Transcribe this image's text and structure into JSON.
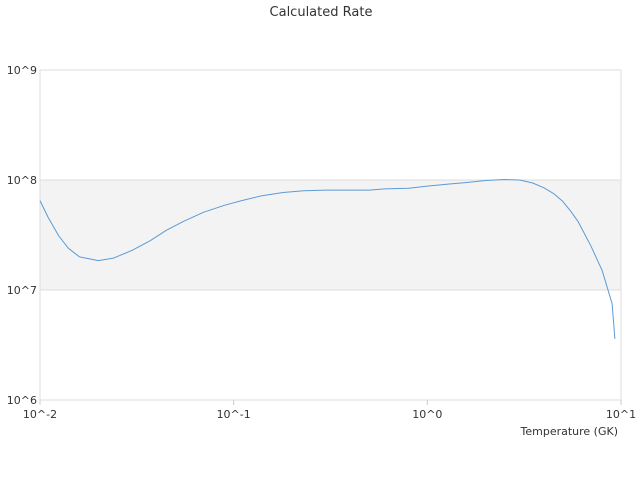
{
  "chart_data": {
    "type": "line",
    "title": "Calculated Rate",
    "xlabel": "Temperature (GK)",
    "ylabel": "",
    "xscale": "log",
    "yscale": "log",
    "xlim": [
      0.01,
      10
    ],
    "ylim": [
      1000000,
      1000000000
    ],
    "x_ticks": [
      {
        "value": 0.01,
        "label": "10^-2"
      },
      {
        "value": 0.1,
        "label": "10^-1"
      },
      {
        "value": 1,
        "label": "10^0"
      },
      {
        "value": 10,
        "label": "10^1"
      }
    ],
    "y_ticks": [
      {
        "value": 1000000,
        "label": "10^6"
      },
      {
        "value": 10000000,
        "label": "10^7"
      },
      {
        "value": 100000000,
        "label": "10^8"
      },
      {
        "value": 1000000000,
        "label": "10^9"
      }
    ],
    "alternating_bands": true,
    "band_color": "#f3f3f3",
    "gridline_color": "#dddddd",
    "legend": "none",
    "series": [
      {
        "color": "#5b9bd5",
        "x": [
          0.01,
          0.011,
          0.0125,
          0.014,
          0.016,
          0.02,
          0.024,
          0.03,
          0.037,
          0.045,
          0.055,
          0.07,
          0.09,
          0.11,
          0.14,
          0.18,
          0.23,
          0.3,
          0.4,
          0.5,
          0.6,
          0.8,
          1.0,
          1.3,
          1.6,
          2.0,
          2.5,
          3.0,
          3.5,
          4.0,
          4.5,
          5.0,
          5.5,
          6.0,
          7.0,
          8.0,
          9.0,
          9.3
        ],
        "y": [
          65000000,
          46000000,
          31000000,
          24000000,
          20000000,
          18500000,
          19500000,
          23000000,
          28000000,
          35000000,
          42000000,
          51000000,
          59000000,
          65000000,
          72000000,
          77000000,
          80000000,
          81000000,
          81000000,
          81000000,
          83000000,
          84000000,
          88000000,
          92000000,
          95000000,
          99000000,
          101000000,
          100000000,
          94000000,
          85000000,
          75000000,
          64000000,
          52000000,
          42000000,
          25000000,
          15000000,
          7500000,
          3600000
        ]
      }
    ]
  }
}
